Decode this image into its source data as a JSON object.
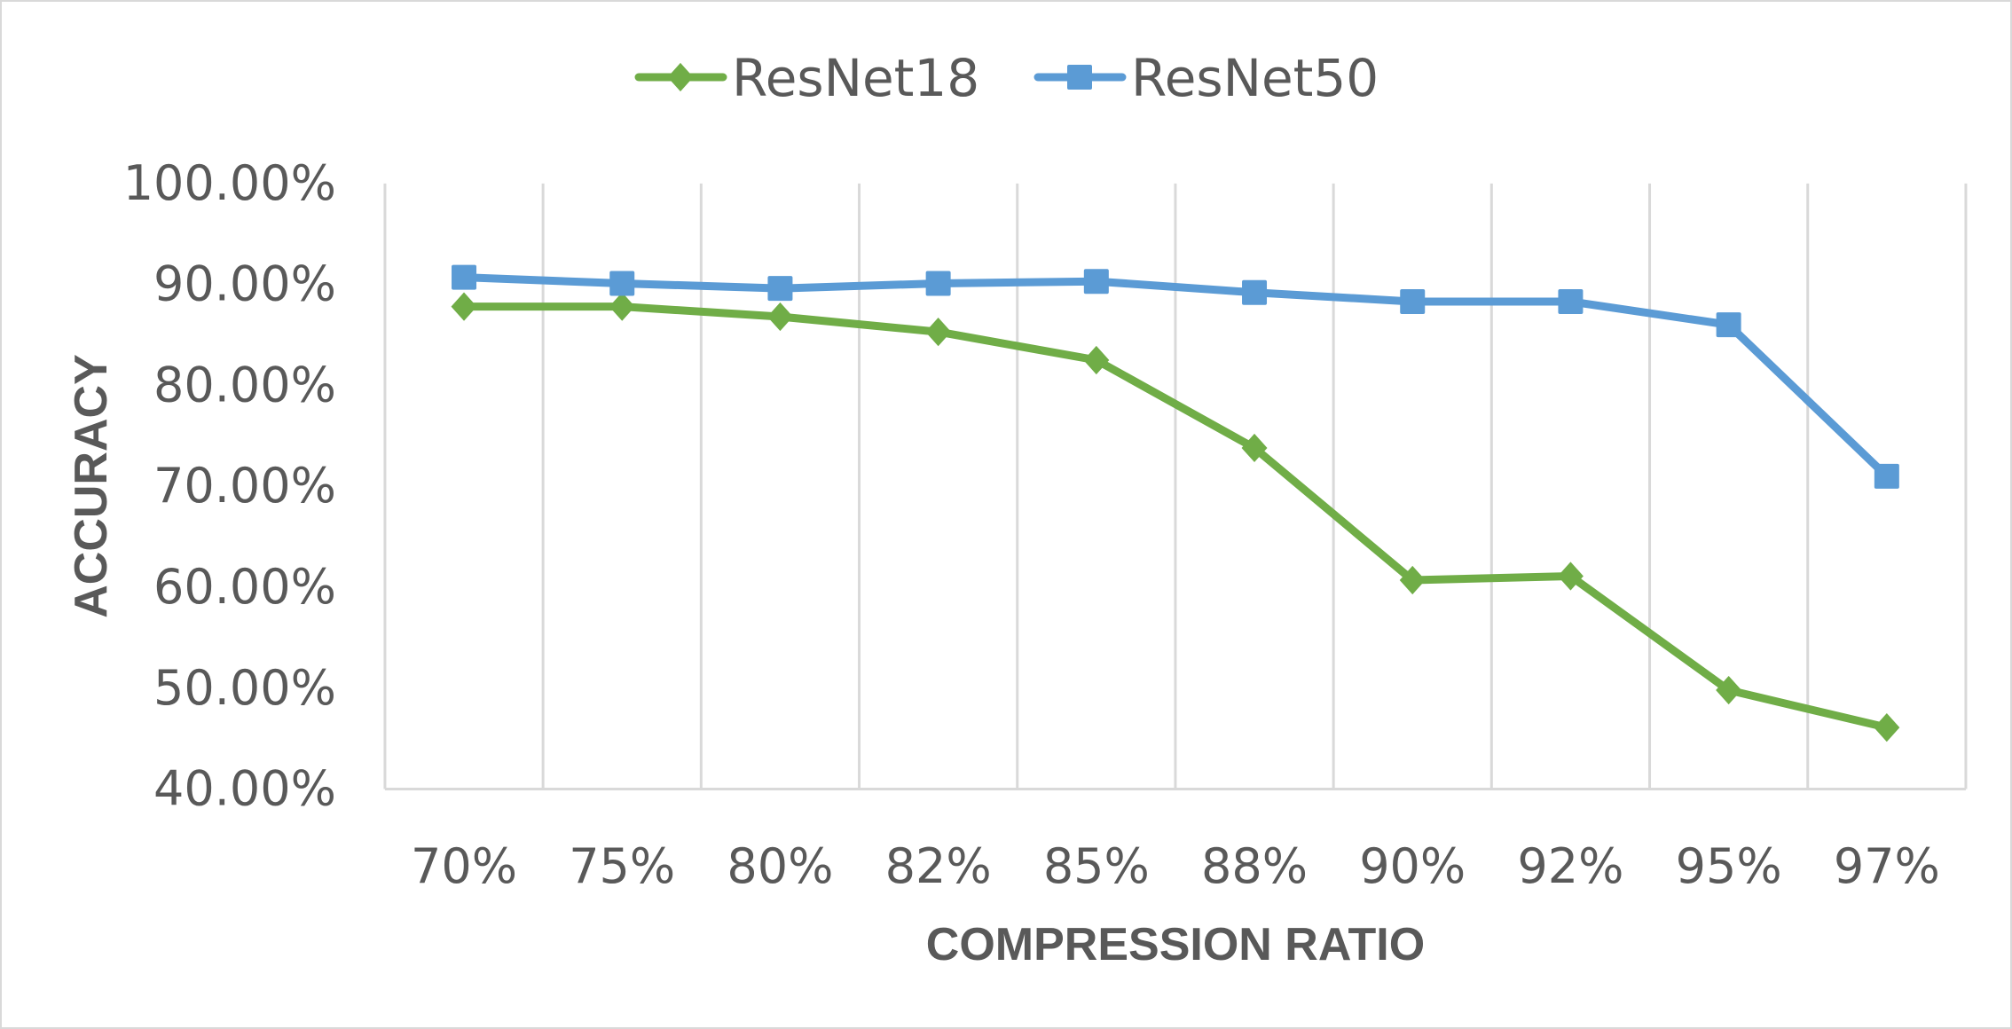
{
  "chart_data": {
    "type": "line",
    "title": "",
    "xlabel": "COMPRESSION RATIO",
    "ylabel": "ACCURACY",
    "categories": [
      "70%",
      "75%",
      "80%",
      "82%",
      "85%",
      "88%",
      "90%",
      "92%",
      "95%",
      "97%"
    ],
    "series": [
      {
        "name": "ResNet18",
        "color": "#70ad47",
        "marker": "diamond",
        "values": [
          87.8,
          87.8,
          86.8,
          85.3,
          82.5,
          73.8,
          60.7,
          61.1,
          49.8,
          46.1
        ]
      },
      {
        "name": "ResNet50",
        "color": "#5b9bd5",
        "marker": "square",
        "values": [
          90.7,
          90.1,
          89.6,
          90.1,
          90.3,
          89.2,
          88.3,
          88.3,
          86.0,
          71.0
        ]
      }
    ],
    "ylim": [
      40,
      100
    ],
    "yticks": [
      "40.00%",
      "50.00%",
      "60.00%",
      "70.00%",
      "80.00%",
      "90.00%",
      "100.00%"
    ],
    "ytick_values": [
      40,
      50,
      60,
      70,
      80,
      90,
      100
    ],
    "grid": "vertical",
    "legend_position": "top"
  },
  "legend": {
    "items": [
      {
        "label": "ResNet18",
        "color": "#70ad47",
        "marker": "diamond"
      },
      {
        "label": "ResNet50",
        "color": "#5b9bd5",
        "marker": "square"
      }
    ]
  },
  "colors": {
    "text": "#595959",
    "grid": "#d9d9d9",
    "border": "#d9d9d9"
  }
}
